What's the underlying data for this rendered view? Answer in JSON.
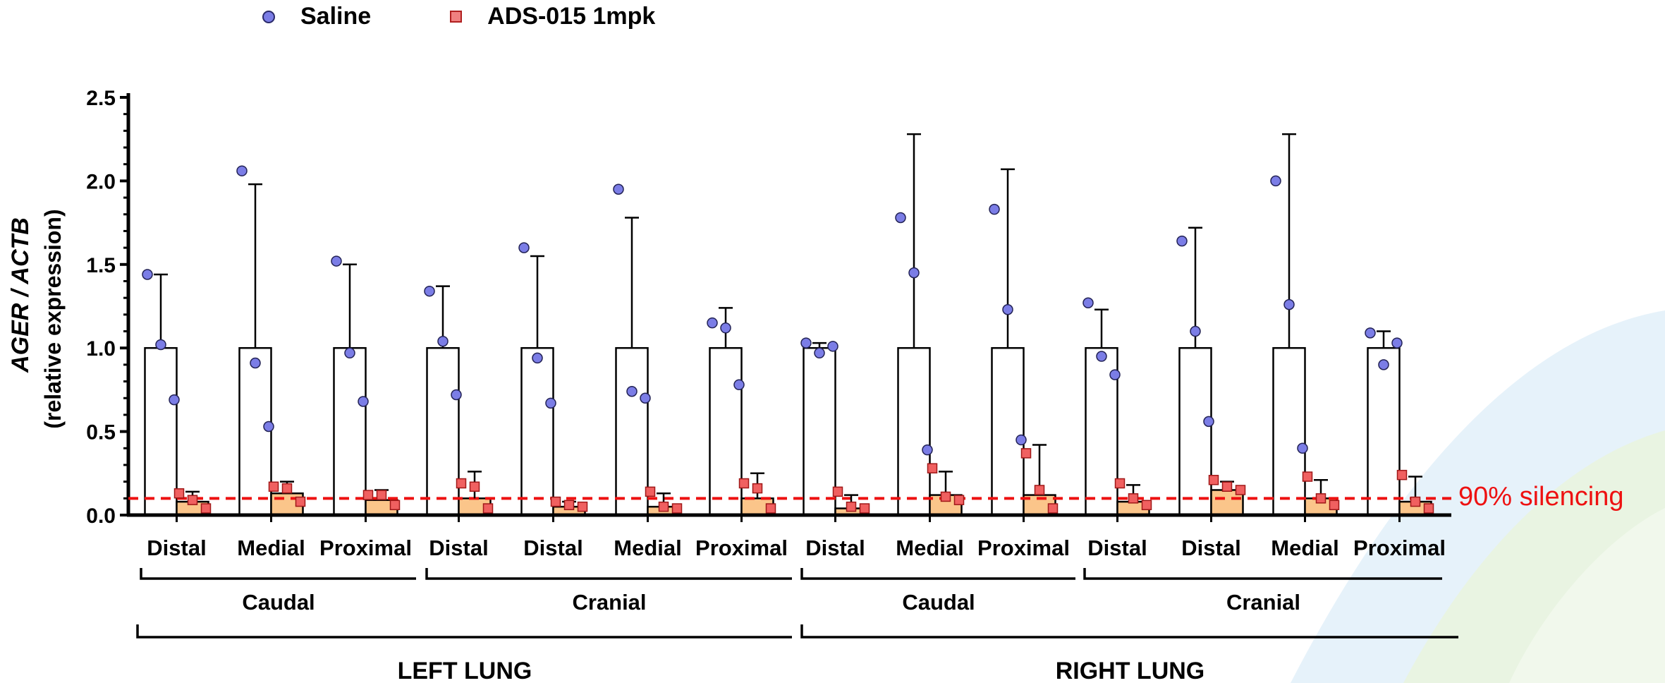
{
  "legend": {
    "saline_label": "Saline",
    "ads_label": "ADS-015 1mpk"
  },
  "threshold_label": "90% silencing",
  "colors": {
    "saline_point": "#7b7de6",
    "ads_point": "#f06060",
    "ads_bar": "#fbc58a",
    "threshold": "#ee1111"
  },
  "chart_data": {
    "type": "bar",
    "ylabel_italic_part": "AGER / ACTB",
    "ylabel_sub": "(relative  expression)",
    "ylim": [
      0,
      2.5
    ],
    "yticks": [
      "0.0",
      "0.5",
      "1.0",
      "1.5",
      "2.0",
      "2.5"
    ],
    "threshold": 0.1,
    "categories": [
      "Distal",
      "Medial",
      "Proximal",
      "Distal",
      "Distal",
      "Medial",
      "Proximal",
      "Distal",
      "Medial",
      "Proximal",
      "Distal",
      "Distal",
      "Medial",
      "Proximal"
    ],
    "groups": [
      {
        "label": "Caudal",
        "start": 0,
        "end": 2
      },
      {
        "label": "Cranial",
        "start": 3,
        "end": 6
      },
      {
        "label": "Caudal",
        "start": 7,
        "end": 9
      },
      {
        "label": "Cranial",
        "start": 10,
        "end": 13
      }
    ],
    "supergroups": [
      {
        "label": "LEFT LUNG",
        "start": 0,
        "end": 6
      },
      {
        "label": "RIGHT LUNG",
        "start": 7,
        "end": 13
      }
    ],
    "series": [
      {
        "name": "Saline",
        "means": [
          1.0,
          1.0,
          1.0,
          1.0,
          1.0,
          1.0,
          1.0,
          1.0,
          1.0,
          1.0,
          1.0,
          1.0,
          1.0,
          1.0
        ],
        "errors": [
          0.44,
          0.98,
          0.5,
          0.37,
          0.55,
          0.78,
          0.24,
          0.03,
          1.28,
          1.07,
          0.23,
          0.72,
          1.28,
          0.1
        ],
        "points": [
          [
            1.44,
            1.02,
            0.69
          ],
          [
            2.06,
            0.91,
            0.53
          ],
          [
            1.52,
            0.97,
            0.68
          ],
          [
            1.34,
            1.04,
            0.72
          ],
          [
            1.6,
            0.94,
            0.67
          ],
          [
            1.95,
            0.74,
            0.7
          ],
          [
            1.15,
            1.12,
            0.78
          ],
          [
            1.03,
            0.97,
            1.01
          ],
          [
            1.78,
            1.45,
            0.39
          ],
          [
            1.83,
            1.23,
            0.45
          ],
          [
            1.27,
            0.95,
            0.84
          ],
          [
            1.64,
            1.1,
            0.56
          ],
          [
            2.0,
            1.26,
            0.4
          ],
          [
            1.09,
            0.9,
            1.03
          ]
        ]
      },
      {
        "name": "ADS-015 1mpk",
        "means": [
          0.08,
          0.13,
          0.09,
          0.1,
          0.05,
          0.05,
          0.1,
          0.04,
          0.12,
          0.12,
          0.08,
          0.15,
          0.1,
          0.08
        ],
        "errors": [
          0.06,
          0.07,
          0.06,
          0.16,
          0.03,
          0.08,
          0.15,
          0.08,
          0.14,
          0.3,
          0.1,
          0.05,
          0.11,
          0.15
        ],
        "points": [
          [
            0.13,
            0.09,
            0.04
          ],
          [
            0.17,
            0.16,
            0.08
          ],
          [
            0.12,
            0.12,
            0.06
          ],
          [
            0.19,
            0.17,
            0.04
          ],
          [
            0.08,
            0.06,
            0.05
          ],
          [
            0.14,
            0.05,
            0.04
          ],
          [
            0.19,
            0.16,
            0.04
          ],
          [
            0.14,
            0.05,
            0.04
          ],
          [
            0.28,
            0.11,
            0.09
          ],
          [
            0.37,
            0.15,
            0.04
          ],
          [
            0.19,
            0.1,
            0.06
          ],
          [
            0.21,
            0.17,
            0.15
          ],
          [
            0.23,
            0.1,
            0.06
          ],
          [
            0.24,
            0.08,
            0.04
          ]
        ]
      }
    ]
  }
}
